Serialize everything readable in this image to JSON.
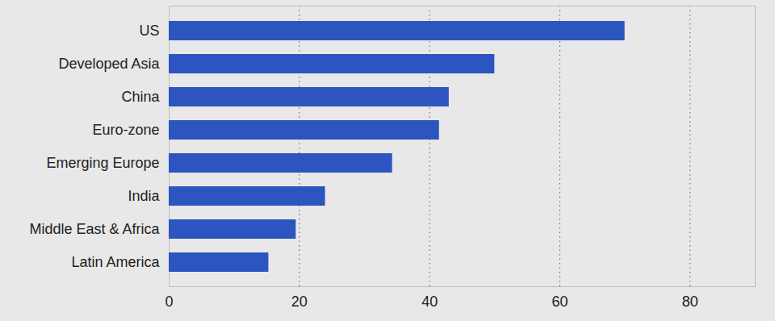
{
  "chart_data": {
    "type": "bar",
    "orientation": "horizontal",
    "categories": [
      "US",
      "Developed Asia",
      "China",
      "Euro-zone",
      "Emerging Europe",
      "India",
      "Middle East & Africa",
      "Latin America"
    ],
    "values": [
      70,
      50,
      43,
      41.5,
      34.3,
      24,
      19.5,
      15.3
    ],
    "color": "#2d55c0",
    "xlim": [
      0,
      90
    ],
    "xticks": [
      0,
      20,
      40,
      60,
      80
    ],
    "grid": true
  }
}
